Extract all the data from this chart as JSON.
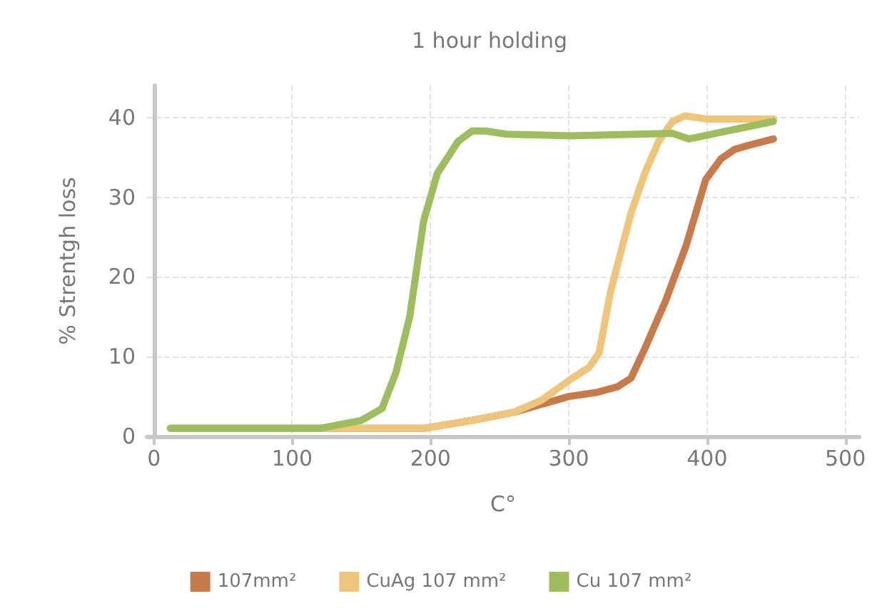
{
  "chart_data": {
    "type": "line",
    "title": "1 hour holding",
    "xlabel": "C°",
    "ylabel": "% Strentgh loss",
    "xlim": [
      -5,
      510
    ],
    "xticks": [
      0,
      100,
      200,
      300,
      400,
      500
    ],
    "ylim": [
      0,
      44
    ],
    "yticks": [
      0,
      10,
      20,
      30,
      40
    ],
    "grid": true,
    "legend": "bottom",
    "marker": "none",
    "line_style": "solid",
    "series": [
      {
        "name": "107mm²",
        "color": "#c87a4a",
        "x": [
          12,
          195,
          230,
          260,
          300,
          320,
          335,
          345,
          355,
          370,
          385,
          399,
          410,
          420,
          430,
          448
        ],
        "values": [
          1,
          1,
          2,
          3,
          5,
          5.5,
          6.2,
          7.3,
          11,
          17,
          24,
          32.2,
          34.8,
          36,
          36.5,
          37.3
        ]
      },
      {
        "name": "CuAg 107 mm²",
        "color": "#eec57a",
        "x": [
          12,
          195,
          230,
          260,
          280,
          300,
          315,
          322,
          330,
          345,
          355,
          365,
          375,
          384,
          400,
          420,
          448
        ],
        "values": [
          1,
          1,
          2,
          3,
          4.5,
          7,
          8.7,
          10.5,
          18,
          28,
          33,
          37,
          39.5,
          40.2,
          39.8,
          39.8,
          39.8
        ]
      },
      {
        "name": "Cu 107 mm²",
        "color": "#9dbd5e",
        "x": [
          12,
          120,
          150,
          165,
          175,
          185,
          195,
          205,
          220,
          230,
          240,
          255,
          300,
          350,
          375,
          387,
          420,
          448
        ],
        "values": [
          1,
          1,
          2,
          3.5,
          8,
          15,
          27,
          33,
          37,
          38.3,
          38.3,
          37.9,
          37.7,
          37.9,
          38,
          37.3,
          38.5,
          39.5
        ]
      }
    ]
  }
}
